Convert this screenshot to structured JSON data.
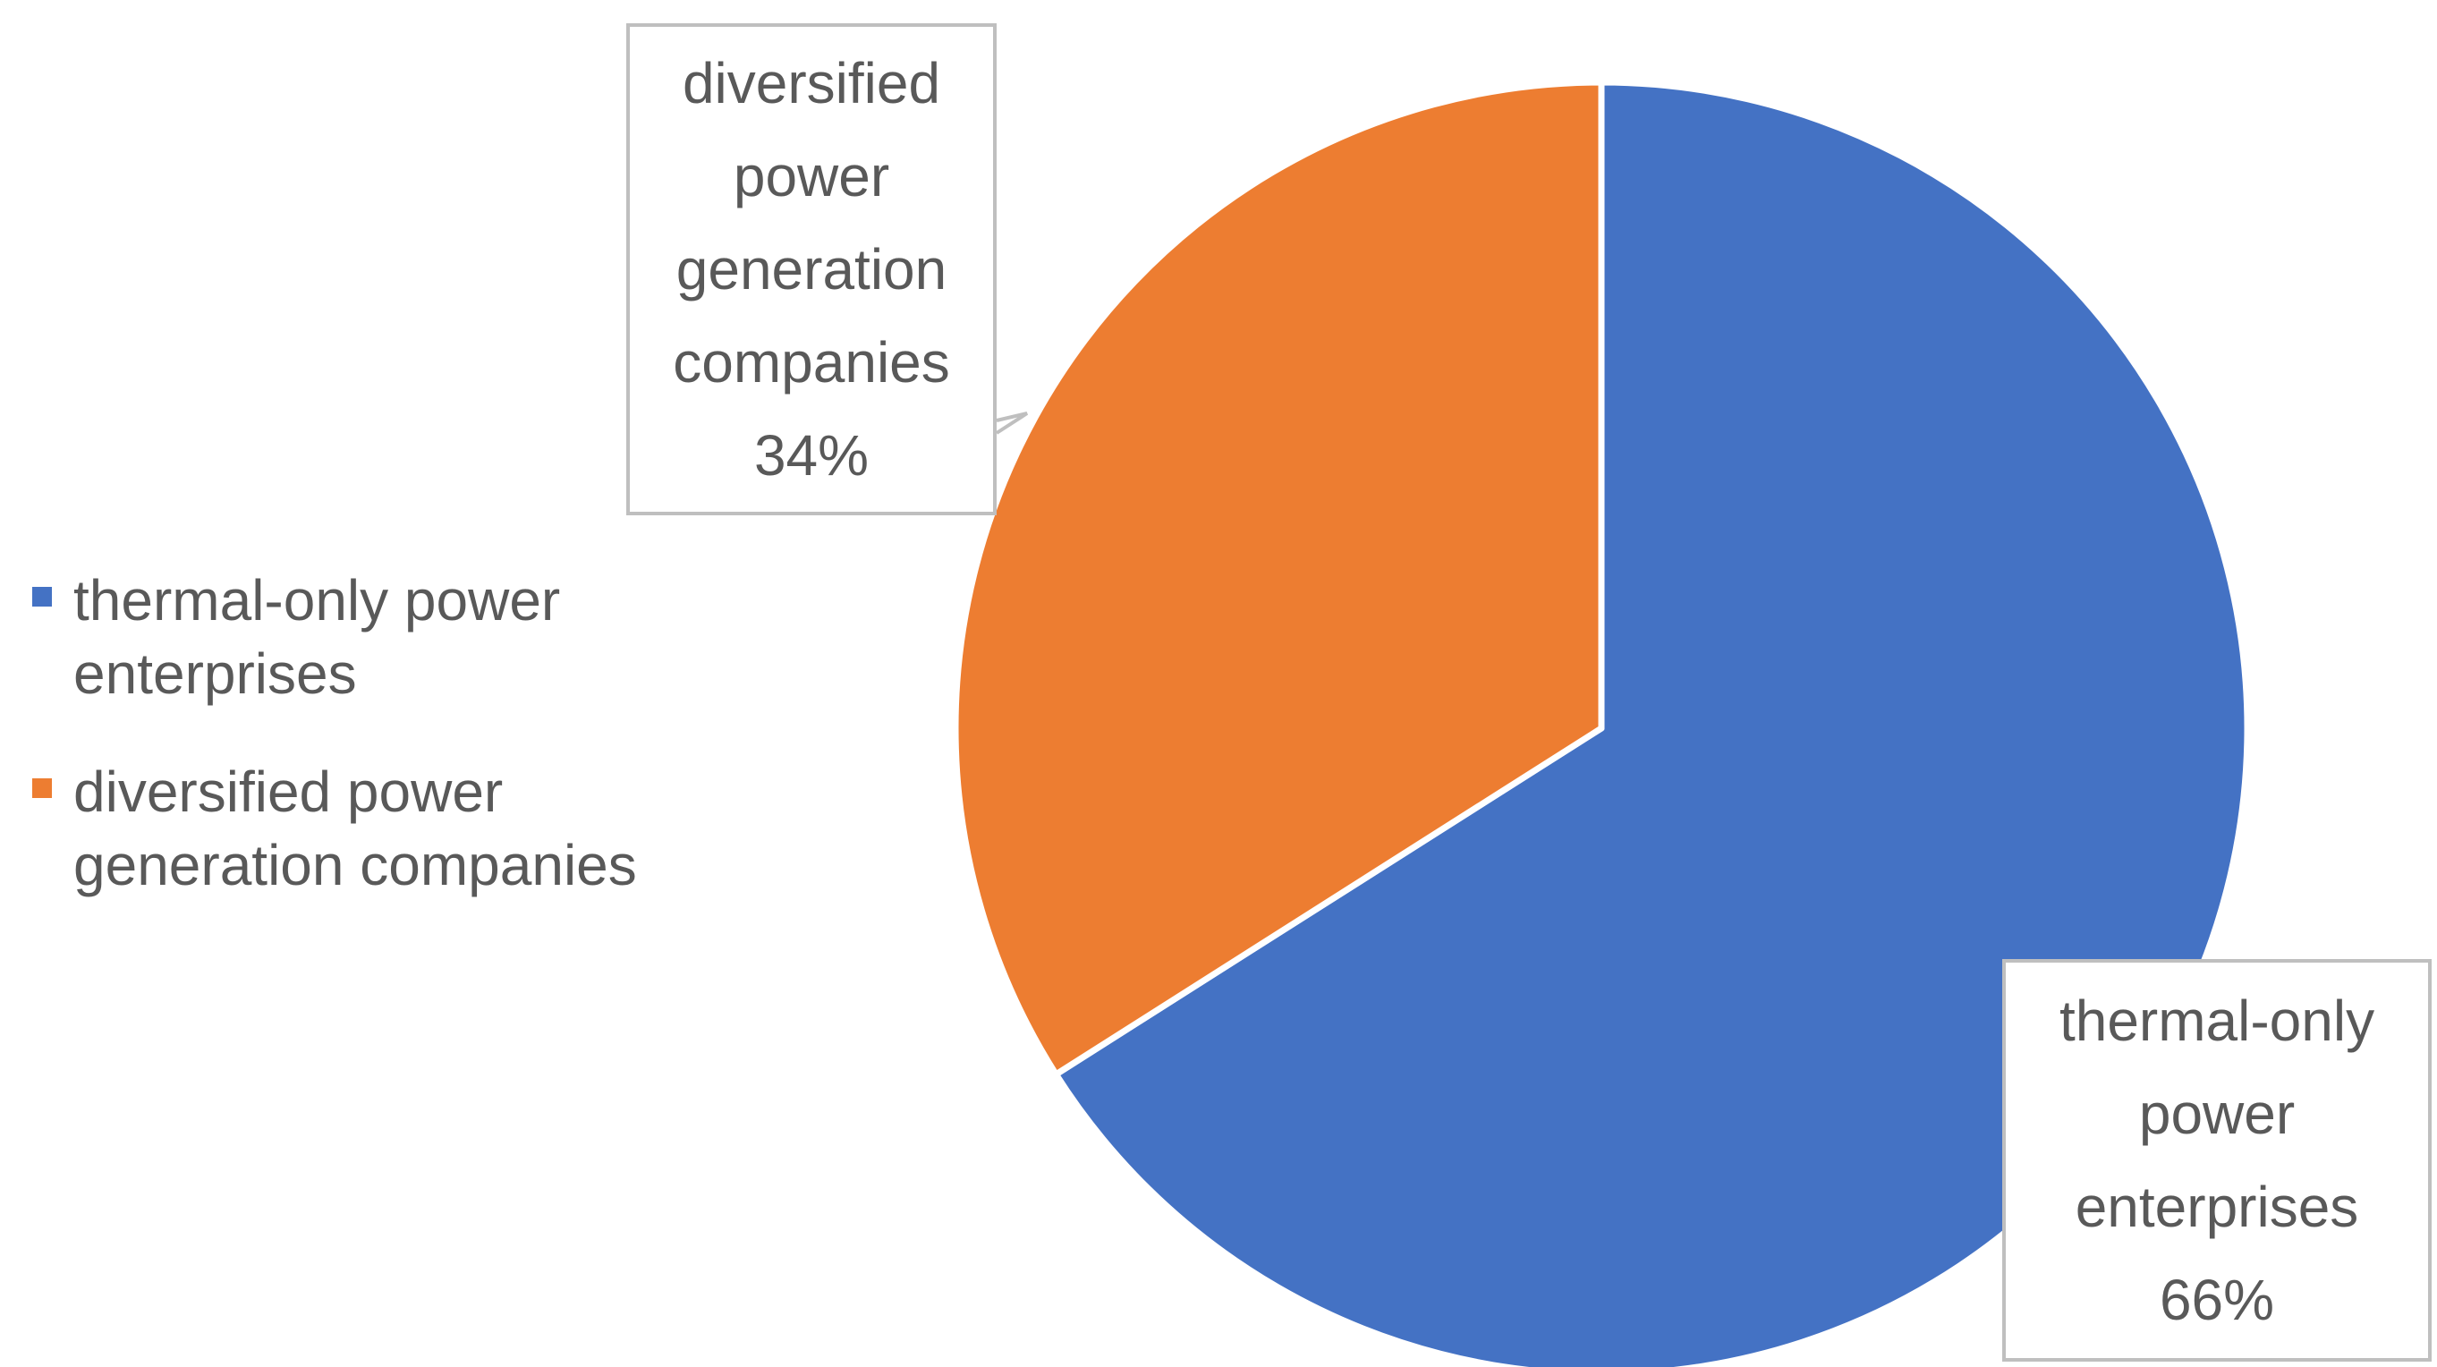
{
  "chart_data": {
    "type": "pie",
    "categories": [
      "thermal-only power enterprises",
      "diversified power generation companies"
    ],
    "values": [
      66,
      34
    ],
    "colors": [
      "#4472c4",
      "#ed7d31"
    ],
    "data_labels": [
      {
        "text": "thermal-only\npower\nenterprises",
        "percent": "66%"
      },
      {
        "text": "diversified\npower\ngeneration\ncompanies",
        "percent": "34%"
      }
    ],
    "legend": {
      "position": "left",
      "entries": [
        "thermal-only power\nenterprises",
        "diversified power\ngeneration companies"
      ]
    }
  }
}
